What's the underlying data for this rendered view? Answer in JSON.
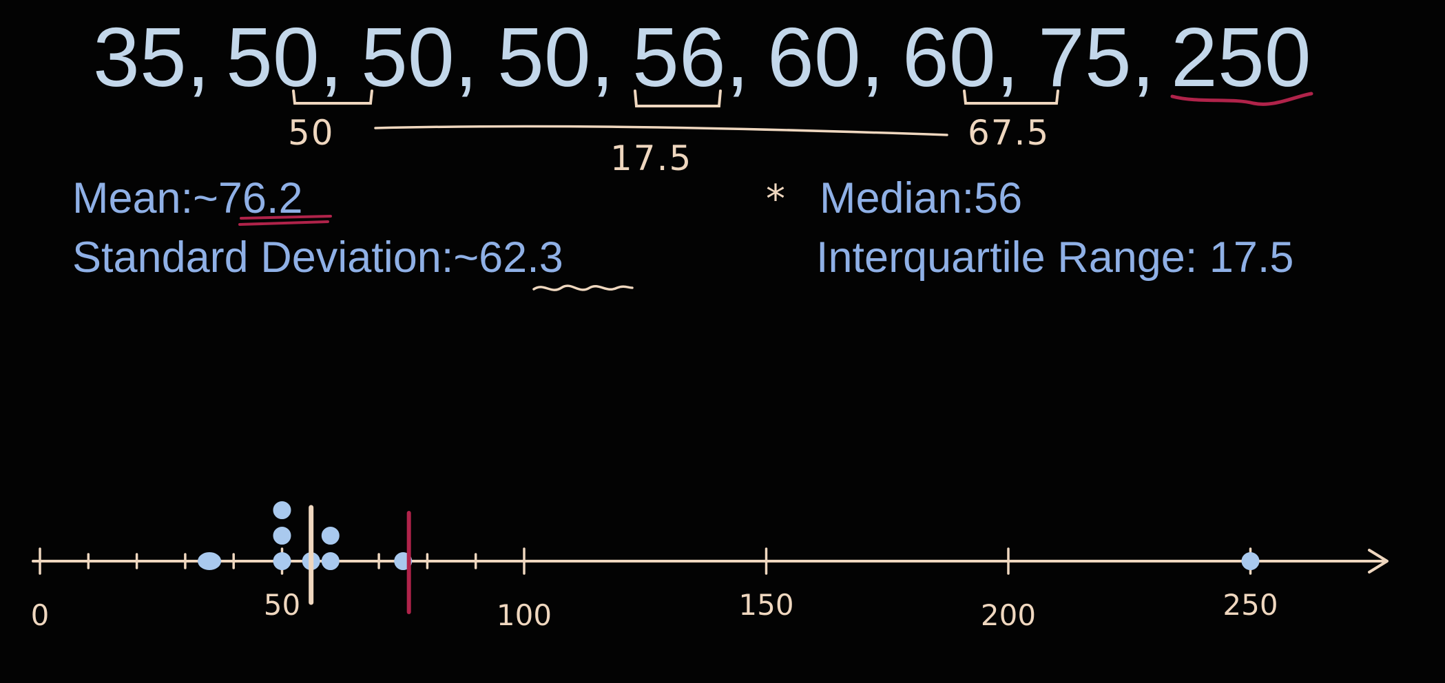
{
  "sequence": [
    "35,",
    "50,",
    "50,",
    "50,",
    "56,",
    "60,",
    "60,",
    "75,",
    "250"
  ],
  "annotations": {
    "q1": "50",
    "iqr": "17.5",
    "q3": "67.5"
  },
  "stats": {
    "mean_label": "Mean:~",
    "mean_value": "76.2",
    "std_label": "Standard Deviation:~",
    "std_value": "62.3",
    "median_mark": "*",
    "median_label": "Median:56",
    "iqr_label": "Interquartile Range: 17.5"
  },
  "number_line": {
    "min": 0,
    "max": 250,
    "labels": [
      {
        "value": 0,
        "text": "0"
      },
      {
        "value": 50,
        "text": "50"
      },
      {
        "value": 100,
        "text": "100"
      },
      {
        "value": 150,
        "text": "150"
      },
      {
        "value": 200,
        "text": "200"
      },
      {
        "value": 250,
        "text": "250"
      }
    ],
    "minor_ticks": [
      0,
      10,
      20,
      30,
      40,
      50,
      60,
      70,
      80,
      90,
      100,
      150,
      200,
      250
    ],
    "points": [
      35,
      50,
      50,
      50,
      56,
      60,
      60,
      75,
      250
    ],
    "median": 56,
    "mean": 76.2
  },
  "colors": {
    "background": "#030303",
    "sequence_text": "#c3d7ea",
    "stat_text": "#8fb0e6",
    "handwriting": "#efd7bf",
    "highlight": "#b0234a",
    "points": "#a9c9ee"
  }
}
